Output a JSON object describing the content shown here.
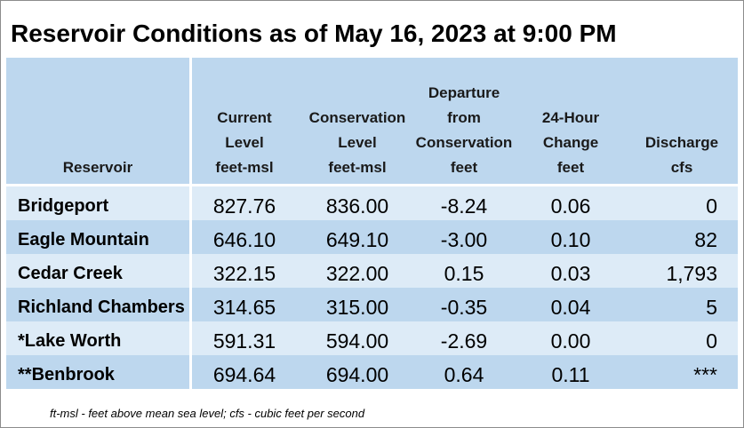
{
  "title": "Reservoir Conditions as of May 16, 2023 at 9:00 PM",
  "headers": {
    "reservoir": [
      "Reservoir"
    ],
    "current": [
      "Current",
      "Level",
      "feet-msl"
    ],
    "conservation": [
      "Conservation",
      "Level",
      "feet-msl"
    ],
    "departure": [
      "Departure",
      "from",
      "Conservation",
      "feet"
    ],
    "change": [
      "24-Hour",
      "Change",
      "feet"
    ],
    "discharge": [
      "Discharge",
      "cfs"
    ]
  },
  "rows": [
    {
      "name": "Bridgeport",
      "current": "827.76",
      "conservation": "836.00",
      "departure": "-8.24",
      "change": "0.06",
      "discharge": "0"
    },
    {
      "name": "Eagle Mountain",
      "current": "646.10",
      "conservation": "649.10",
      "departure": "-3.00",
      "change": "0.10",
      "discharge": "82"
    },
    {
      "name": "Cedar Creek",
      "current": "322.15",
      "conservation": "322.00",
      "departure": "0.15",
      "change": "0.03",
      "discharge": "1,793"
    },
    {
      "name": "Richland Chambers",
      "current": "314.65",
      "conservation": "315.00",
      "departure": "-0.35",
      "change": "0.04",
      "discharge": "5"
    },
    {
      "name": "*Lake Worth",
      "current": "591.31",
      "conservation": "594.00",
      "departure": "-2.69",
      "change": "0.00",
      "discharge": "0"
    },
    {
      "name": "**Benbrook",
      "current": "694.64",
      "conservation": "694.00",
      "departure": "0.64",
      "change": "0.11",
      "discharge": "***"
    }
  ],
  "footnote": "ft-msl - feet above mean sea level; cfs - cubic feet per second",
  "colors": {
    "header_bg": "#bdd7ee",
    "row_light": "#ddebf7",
    "row_dark": "#bdd7ee"
  }
}
